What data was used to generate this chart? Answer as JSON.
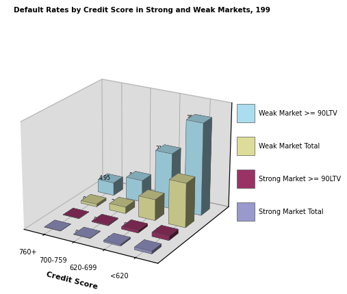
{
  "title": "Default Rates by Credit Score in Strong and Weak Markets, 199",
  "xlabel": "Credit Score",
  "credit_score_labels": [
    "760+",
    "700-759",
    "620-699",
    "<620"
  ],
  "series_order": [
    "Strong Market Total",
    "Strong Market >= 90LTV",
    "Weak Market Total",
    "Weak Market >= 90LTV"
  ],
  "values": {
    "Strong Market Total": [
      0,
      0.12,
      0.6,
      1.0
    ],
    "Strong Market >= 90LTV": [
      0,
      0.38,
      0.95,
      1.6
    ],
    "Weak Market Total": [
      0.98,
      2.48,
      8.02,
      16.88
    ],
    "Weak Market >= 90LTV": [
      4.95,
      8.4,
      21.29,
      35.17
    ]
  },
  "bar_colors": {
    "Strong Market Total": "#9999CC",
    "Strong Market >= 90LTV": "#993366",
    "Weak Market Total": "#DDDD99",
    "Weak Market >= 90LTV": "#AADDEE"
  },
  "label_values": {
    "Strong Market Total": [
      "0",
      "0.12",
      "0.6",
      "1"
    ],
    "Strong Market >= 90LTV": [
      "0",
      "0.38",
      "0.95",
      "1.6"
    ],
    "Weak Market Total": [
      "0.98",
      "2.48",
      "8.02",
      "16.88"
    ],
    "Weak Market >= 90LTV": [
      "4.95",
      "8.4",
      "21.29",
      "35.17"
    ]
  },
  "legend_order": [
    "Weak Market >= 90LTV",
    "Weak Market Total",
    "Strong Market >= 90LTV",
    "Strong Market Total"
  ],
  "wall_color": "#BBBBBB",
  "floor_color": "#888888",
  "zlim": 40
}
